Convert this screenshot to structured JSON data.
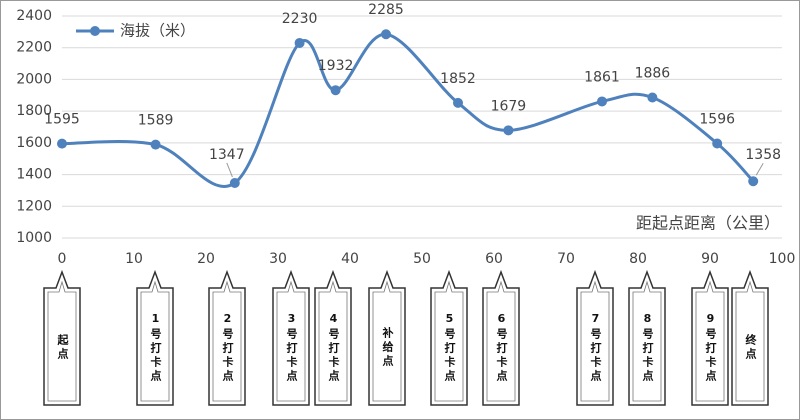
{
  "chart_data": {
    "type": "line",
    "x": [
      0,
      13,
      24,
      33,
      38,
      45,
      55,
      62,
      75,
      82,
      91,
      96
    ],
    "series": [
      {
        "name": "海拔（米）",
        "color": "#4f81bd",
        "values": [
          1595,
          1589,
          1347,
          2230,
          1932,
          2285,
          1852,
          1679,
          1861,
          1886,
          1596,
          1358
        ]
      }
    ],
    "xlim": [
      0,
      100
    ],
    "xticks": [
      0,
      10,
      20,
      30,
      40,
      50,
      60,
      70,
      80,
      90,
      100
    ],
    "ylim": [
      1000,
      2400
    ],
    "yticks": [
      1000,
      1200,
      1400,
      1600,
      1800,
      2000,
      2200,
      2400
    ],
    "x_label": "距起点距离（公里）",
    "grid": true,
    "legend": "top-left",
    "smooth": true
  },
  "checkpoints": [
    "起点",
    "1号打卡点",
    "2号打卡点",
    "3号打卡点",
    "4号打卡点",
    "补给点",
    "5号打卡点",
    "6号打卡点",
    "7号打卡点",
    "8号打卡点",
    "9号打卡点",
    "终点"
  ]
}
